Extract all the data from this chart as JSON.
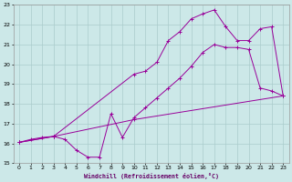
{
  "xlabel": "Windchill (Refroidissement éolien,°C)",
  "bg_color": "#cce8e8",
  "grid_color": "#aacccc",
  "line_color": "#990099",
  "xlim": [
    -0.5,
    23.5
  ],
  "ylim": [
    15,
    23
  ],
  "xticks": [
    0,
    1,
    2,
    3,
    4,
    5,
    6,
    7,
    8,
    9,
    10,
    11,
    12,
    13,
    14,
    15,
    16,
    17,
    18,
    19,
    20,
    21,
    22,
    23
  ],
  "yticks": [
    15,
    16,
    17,
    18,
    19,
    20,
    21,
    22,
    23
  ],
  "line1_x": [
    0,
    1,
    2,
    3,
    4,
    5,
    6,
    7,
    8,
    9,
    10,
    11,
    12,
    13,
    14,
    15,
    16,
    17,
    18,
    19,
    20,
    21,
    22,
    23
  ],
  "line1_y": [
    16.05,
    16.2,
    16.3,
    16.35,
    16.2,
    15.65,
    15.3,
    15.3,
    17.5,
    16.3,
    17.3,
    17.8,
    18.3,
    18.8,
    19.3,
    19.9,
    20.6,
    21.0,
    20.85,
    20.85,
    20.75,
    18.8,
    18.65,
    18.4
  ],
  "line2_x": [
    0,
    3,
    10,
    23
  ],
  "line2_y": [
    16.05,
    16.35,
    17.2,
    18.4
  ],
  "line3_x": [
    0,
    3,
    10,
    11,
    12,
    13,
    14,
    15,
    16,
    17,
    18,
    19,
    20,
    21,
    22,
    23
  ],
  "line3_y": [
    16.05,
    16.35,
    19.5,
    19.65,
    20.1,
    21.2,
    21.65,
    22.3,
    22.55,
    22.75,
    21.9,
    21.2,
    21.2,
    21.8,
    21.9,
    18.4
  ]
}
